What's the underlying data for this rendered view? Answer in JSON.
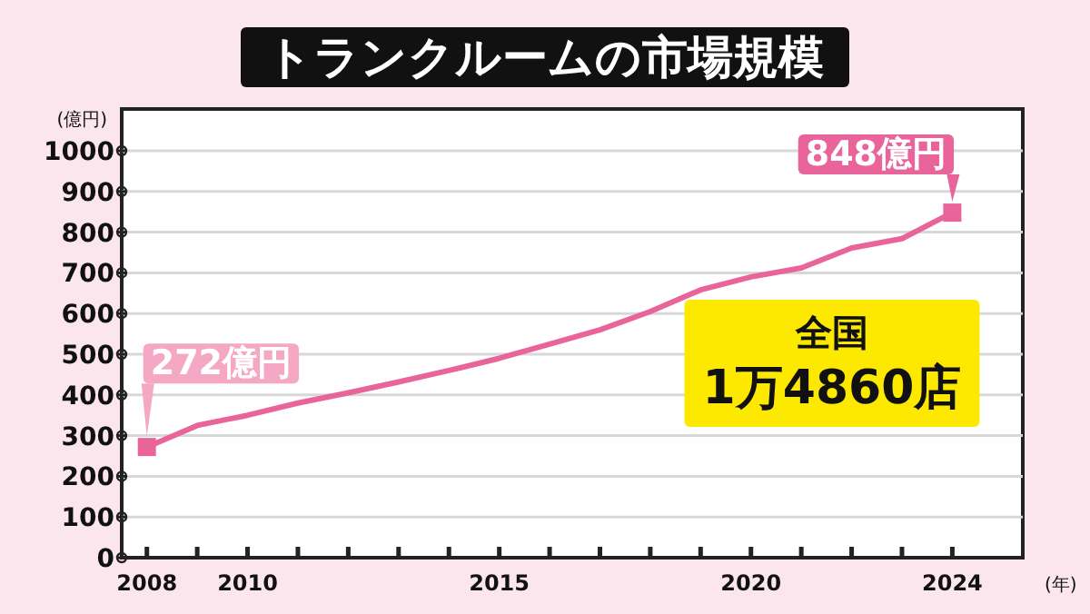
{
  "chart_data": {
    "type": "line",
    "title": "トランクルームの市場規模",
    "ylabel": "(億円)",
    "xlabel": "(年)",
    "x": [
      2008,
      2009,
      2010,
      2011,
      2012,
      2013,
      2014,
      2015,
      2016,
      2017,
      2018,
      2019,
      2020,
      2021,
      2022,
      2023,
      2024
    ],
    "series": [
      {
        "color": "#e8649a",
        "values": [
          272,
          325,
          350,
          380,
          405,
          432,
          460,
          490,
          525,
          560,
          605,
          658,
          690,
          712,
          761,
          784,
          848
        ]
      }
    ],
    "xlim": [
      2007.5,
      2025.4
    ],
    "xticks": [
      2008,
      {
        "value": 2009,
        "label": null
      },
      2010,
      {
        "value": 2011,
        "label": null
      },
      {
        "value": 2012,
        "label": null
      },
      {
        "value": 2013,
        "label": null
      },
      {
        "value": 2014,
        "label": null
      },
      2015,
      {
        "value": 2016,
        "label": null
      },
      {
        "value": 2017,
        "label": null
      },
      {
        "value": 2018,
        "label": null
      },
      {
        "value": 2019,
        "label": null
      },
      2020,
      {
        "value": 2021,
        "label": null
      },
      {
        "value": 2022,
        "label": null
      },
      {
        "value": 2023,
        "label": null
      },
      2024
    ],
    "ylim": [
      0,
      1000
    ],
    "yticks": [
      0,
      100,
      200,
      300,
      400,
      500,
      600,
      700,
      800,
      900,
      1000
    ],
    "grid": "y",
    "line_style": "solid",
    "annotations": [
      {
        "text": "272億円",
        "x": 2008,
        "y": 272
      },
      {
        "text": "848億円",
        "x": 2024,
        "y": 848
      },
      "全国\n1万4860店"
    ]
  }
}
